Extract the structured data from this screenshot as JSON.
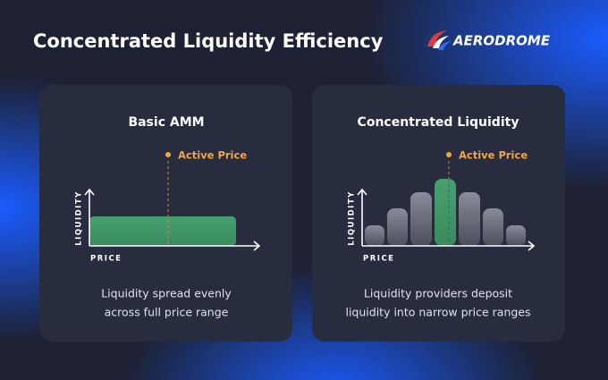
{
  "header": {
    "title": "Concentrated Liquidity Efficiency",
    "brand": "AERODROME"
  },
  "panels": [
    {
      "title": "Basic AMM",
      "marker": "Active Price",
      "y_axis": "LIQUIDITY",
      "x_axis": "PRICE",
      "caption": [
        "Liquidity spread evenly",
        "across full price range"
      ]
    },
    {
      "title": "Concentrated Liquidity",
      "marker": "Active Price",
      "y_axis": "LIQUIDITY",
      "x_axis": "PRICE",
      "caption": [
        "Liquidity providers deposit",
        "liquidity into narrow price ranges"
      ]
    }
  ]
}
